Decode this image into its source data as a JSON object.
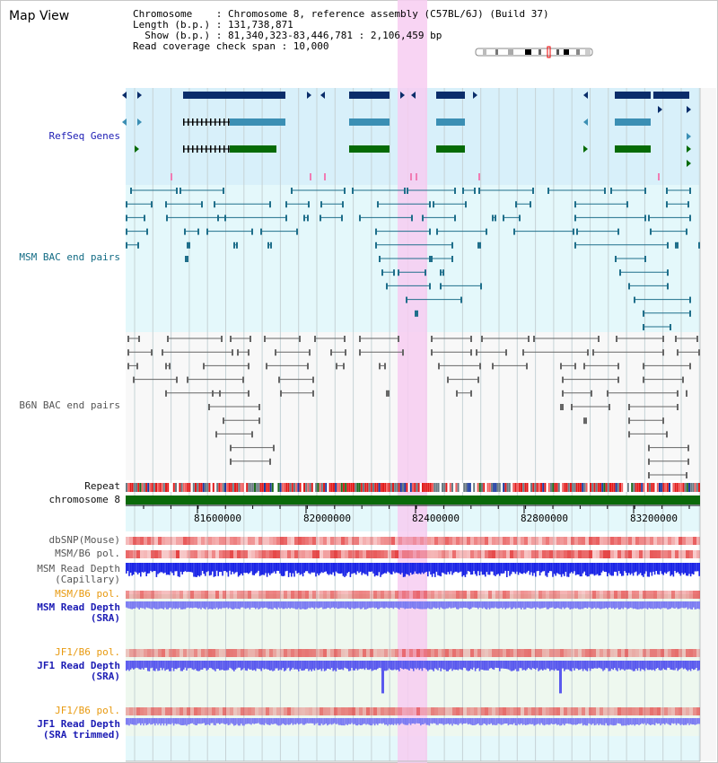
{
  "title": "Map View",
  "info": {
    "line1": "Chromosome    : Chromosome 8, reference assembly (C57BL/6J) (Build 37)",
    "line2": "Length (b.p.) : 131,738,871",
    "line3": "  Show (b.p.) : 81,340,323-83,446,781 : 2,106,459 bp",
    "line4": "Read coverage check span : 10,000"
  },
  "tracks": {
    "refseq": "RefSeq Genes",
    "msm_bac": "MSM BAC end pairs",
    "b6n_bac": "B6N BAC end pairs",
    "repeat": "Repeat",
    "chromosome": "chromosome 8",
    "dbsnp": "dbSNP(Mouse)",
    "msm_b6_pol_1": "MSM/B6 pol.",
    "msm_depth_cap_1": "MSM Read Depth",
    "msm_depth_cap_2": "(Capillary)",
    "msm_b6_pol_2": "MSM/B6 pol.",
    "msm_depth_sra_1": "MSM Read Depth",
    "msm_depth_sra_2": "(SRA)",
    "jf1_b6_pol_1": "JF1/B6 pol.",
    "jf1_depth_sra_1": "JF1 Read Depth",
    "jf1_depth_sra_2": "(SRA)",
    "jf1_b6_pol_2": "JF1/B6 pol.",
    "jf1_depth_trim_1": "JF1 Read Depth",
    "jf1_depth_trim_2": "(SRA trimmed)"
  },
  "ruler": {
    "ticks": [
      "81600000",
      "82000000",
      "82400000",
      "82800000",
      "83200000"
    ]
  },
  "colors": {
    "refseq_bg": "#d8f0fa",
    "msm_bg": "#e4f8fb",
    "highlight": "#f7cdf1",
    "navy": "#0a2d6a",
    "steel": "#3b8fb4",
    "green": "#066b06",
    "bac_teal": "#1f6f8b",
    "bac_gray": "#666666",
    "depth_blue": "#1a24e6",
    "depth_light": "#7c7cf2"
  }
}
